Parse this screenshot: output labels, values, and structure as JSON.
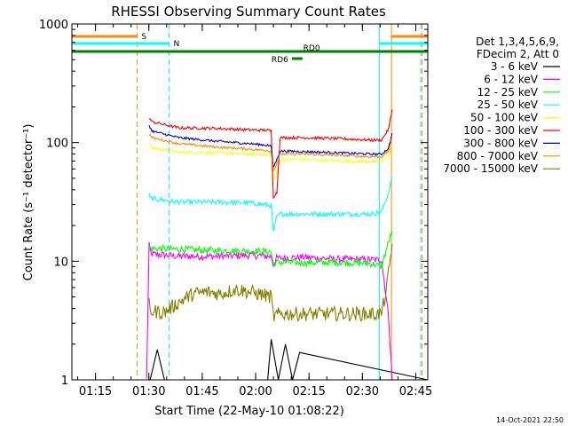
{
  "chart_data": {
    "type": "line",
    "title": "RHESSI Observing Summary Count Rates",
    "xlabel": "Start Time (22-May-10 01:08:22)",
    "ylabel": "Count Rate (s⁻¹ detector⁻¹)",
    "yscale": "log",
    "ylim": [
      1,
      1000
    ],
    "xlim_minutes": [
      0,
      100
    ],
    "x_tick_labels": [
      "01:15",
      "01:30",
      "01:45",
      "02:00",
      "02:15",
      "02:30",
      "02:45"
    ],
    "x_ticks_minutes": [
      6.63,
      21.63,
      36.63,
      51.63,
      66.63,
      81.63,
      96.63
    ],
    "y_tick_labels": [
      "1",
      "10",
      "100",
      "1000"
    ],
    "y_ticks": [
      1,
      10,
      100,
      1000
    ],
    "legend_header": [
      "Det 1,3,4,5,6,9,",
      "FDecim 2, Att 0"
    ],
    "series": [
      {
        "name": "3 - 6 keV",
        "color": "#000000",
        "x": [
          0,
          22,
          24,
          26,
          55,
          56,
          58,
          60,
          62,
          64,
          100
        ],
        "y": [
          1,
          1,
          1.8,
          1,
          1,
          2.2,
          1,
          2.0,
          1,
          1.7,
          1
        ]
      },
      {
        "name": "6 - 12 keV",
        "color": "#ff00ff",
        "x": [
          21,
          21.7,
          22.3,
          30,
          40,
          50,
          56,
          56.6,
          57.5,
          65,
          75,
          84,
          87,
          89,
          90
        ],
        "y": [
          1,
          13.5,
          11.5,
          11.0,
          11.0,
          11.2,
          11.0,
          9.4,
          10.6,
          10.8,
          10.4,
          10.3,
          10.3,
          3.4,
          1
        ]
      },
      {
        "name": "12 - 25 keV",
        "color": "#00ff00",
        "x": [
          21.7,
          22,
          30,
          40,
          50,
          56,
          56.6,
          58,
          65,
          75,
          84,
          87,
          88.5,
          90
        ],
        "y": [
          13.5,
          12.8,
          12.6,
          12.3,
          12.2,
          12.0,
          9.5,
          9.8,
          9.7,
          9.8,
          9.6,
          9.0,
          13,
          18
        ]
      },
      {
        "name": "25 - 50 keV",
        "color": "#00ffff",
        "x": [
          21.7,
          22,
          30,
          40,
          50,
          56,
          56.6,
          57.6,
          58.5,
          65,
          75,
          84,
          87,
          89,
          90
        ],
        "y": [
          36,
          34,
          31.5,
          31.5,
          31,
          29.5,
          17.5,
          23.5,
          25,
          25,
          25,
          25,
          26,
          38,
          52
        ]
      },
      {
        "name": "50 - 100 keV",
        "color": "#ffff00",
        "x": [
          21.7,
          22.5,
          30,
          40,
          50,
          55,
          56,
          56.6,
          57.6,
          58.5,
          65,
          75,
          84,
          87,
          89,
          90
        ],
        "y": [
          100,
          90,
          83,
          82,
          80,
          79,
          77,
          47,
          58,
          72,
          72,
          70,
          69,
          69,
          78,
          97
        ]
      },
      {
        "name": "100 - 300 keV",
        "color": "#ff0000",
        "x": [
          21.7,
          22.5,
          30,
          40,
          50,
          55,
          56,
          56.6,
          57.6,
          58.5,
          65,
          75,
          84,
          87,
          89,
          90
        ],
        "y": [
          162,
          150,
          133,
          132,
          128,
          127,
          125,
          35,
          38,
          110,
          110,
          108,
          105,
          105,
          130,
          190
        ]
      },
      {
        "name": "300 - 800 keV",
        "color": "#0000cc",
        "x": [
          21.7,
          22.5,
          30,
          40,
          50,
          55,
          56,
          56.6,
          57.6,
          58.5,
          65,
          75,
          84,
          87,
          89,
          90
        ],
        "y": [
          140,
          125,
          110,
          103,
          98,
          95,
          93,
          62,
          72,
          85,
          84,
          82,
          80,
          80,
          90,
          120
        ]
      },
      {
        "name": "800 - 7000 keV",
        "color": "#ff8800",
        "x": [
          21.7,
          22.5,
          30,
          40,
          50,
          55,
          56,
          56.6,
          57.6,
          58.5,
          65,
          75,
          84,
          87,
          89,
          90
        ],
        "y": [
          118,
          110,
          98,
          92,
          88,
          86,
          84,
          58,
          67,
          80,
          80,
          78,
          76,
          76,
          85,
          110
        ]
      },
      {
        "name": "7000 - 15000 keV",
        "color": "#808000",
        "x": [
          21.7,
          22,
          26,
          30,
          34,
          38,
          42,
          46,
          50,
          54,
          56,
          56.6,
          58.5,
          65,
          75,
          84,
          87,
          88.5,
          90
        ],
        "y": [
          4.4,
          3.8,
          3.7,
          4.5,
          5.3,
          5.5,
          5.3,
          5.8,
          5.5,
          5.2,
          5.0,
          3.4,
          3.6,
          3.6,
          3.6,
          3.6,
          3.6,
          6,
          14
        ]
      }
    ],
    "vertical_markers": [
      {
        "minute": 18.3,
        "color": "#ff8800",
        "style": "dashed"
      },
      {
        "minute": 27.3,
        "color": "#00ffff",
        "style": "dashed"
      },
      {
        "minute": 86.4,
        "color": "#00ffff",
        "style": "solid"
      },
      {
        "minute": 89.8,
        "color": "#ff8800",
        "style": "solid"
      },
      {
        "minute": 98.0,
        "color": "#00ffff",
        "style": "dashed"
      },
      {
        "minute": 98.4,
        "color": "#ff8800",
        "style": "dashed"
      }
    ],
    "flag_bars": [
      {
        "label": "S",
        "color": "#ff8800",
        "x0": 0,
        "x1": 18.3,
        "level": 0
      },
      {
        "label": "S",
        "color": "#ff8800",
        "x0": 89.8,
        "x1": 100,
        "level": 0
      },
      {
        "label": "N",
        "color": "#00ffff",
        "x0": 0,
        "x1": 27.3,
        "level": 1
      },
      {
        "label": "N",
        "color": "#00ffff",
        "x0": 86.4,
        "x1": 100,
        "level": 1
      },
      {
        "label": "RD0",
        "color": "#008000",
        "x0": 0,
        "x1": 100,
        "level": 2
      },
      {
        "label": "RD6",
        "color": "#008000",
        "x0": 61.8,
        "x1": 64.8,
        "level": 3
      }
    ],
    "timestamp": "14-Oct-2021 22:50"
  }
}
